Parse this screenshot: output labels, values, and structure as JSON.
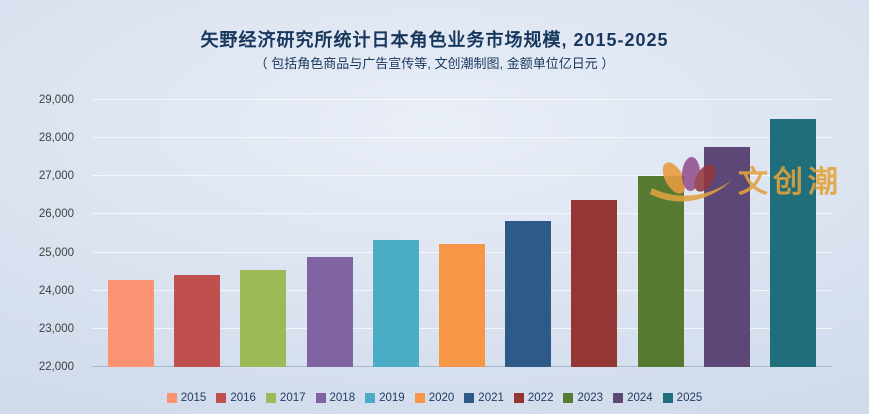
{
  "chart_data": {
    "type": "bar",
    "title": "矢野经济研究所统计日本角色业务市场规模, 2015-2025",
    "subtitle": "（ 包括角色商品与广告宣传等, 文创潮制图, 金额单位亿日元 ）",
    "categories": [
      "2015",
      "2016",
      "2017",
      "2018",
      "2019",
      "2020",
      "2021",
      "2022",
      "2023",
      "2024",
      "2025"
    ],
    "values": [
      24280,
      24400,
      24550,
      24880,
      25330,
      25230,
      25820,
      26370,
      27000,
      27770,
      28500
    ],
    "colors": [
      "#FA9473",
      "#C0504D",
      "#9BBB59",
      "#8064A2",
      "#4BACC6",
      "#F79646",
      "#2E5A87",
      "#943634",
      "#567A31",
      "#5D4776",
      "#206E7B"
    ],
    "xlabel": "",
    "ylabel": "",
    "ylim": [
      22000,
      29000
    ],
    "yticks": [
      22000,
      23000,
      24000,
      25000,
      26000,
      27000,
      28000,
      29000
    ],
    "ytick_labels": [
      "22,000",
      "23,000",
      "24,000",
      "25,000",
      "26,000",
      "27,000",
      "28,000",
      "29,000"
    ],
    "grid": true,
    "legend_position": "bottom",
    "baseline_color": "#A9B7CC"
  },
  "watermark": {
    "text": "文创潮",
    "accent_color": "#E2A33C"
  }
}
